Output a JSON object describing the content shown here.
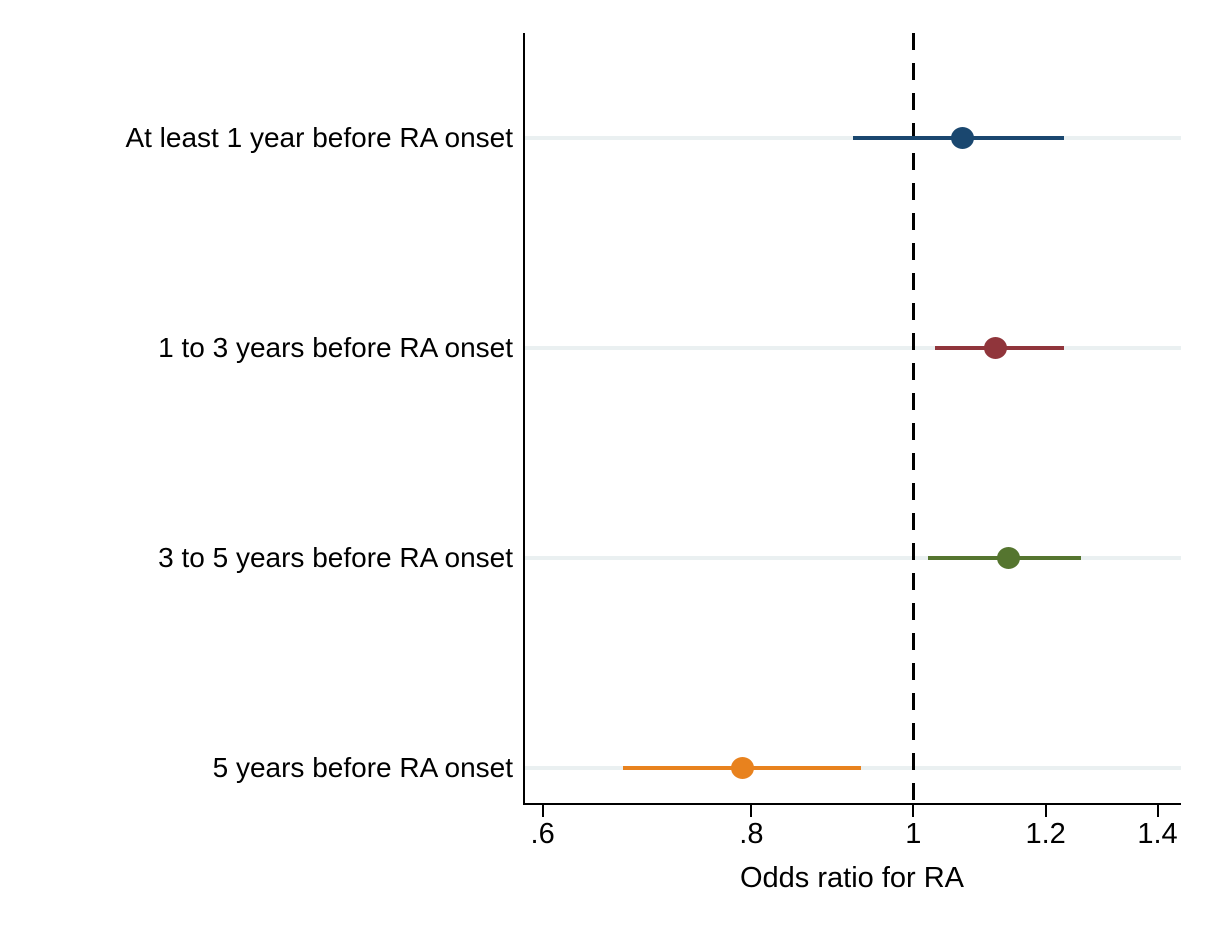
{
  "chart_data": {
    "type": "scatter",
    "subtype": "forest-plot",
    "title": "",
    "xlabel": "Odds ratio for RA",
    "ylabel": "",
    "x_scale": "log",
    "xlim": [
      0.584,
      1.446
    ],
    "x_ticks": [
      0.6,
      0.8,
      1,
      1.2,
      1.4
    ],
    "x_tick_labels": [
      ".6",
      ".8",
      "1",
      "1.2",
      "1.4"
    ],
    "reference_line_x": 1,
    "grid": true,
    "legend": "none",
    "categories": [
      "At least 1 year before RA onset",
      "1 to 3 years before RA onset",
      "3 to 5 years before RA onset",
      "5 years before RA onset"
    ],
    "points": [
      {
        "label": "At least 1 year before RA onset",
        "estimate": 1.07,
        "ci_low": 0.92,
        "ci_high": 1.23,
        "color": "#1a476f"
      },
      {
        "label": "1 to 3 years before RA onset",
        "estimate": 1.12,
        "ci_low": 1.03,
        "ci_high": 1.23,
        "color": "#90353b"
      },
      {
        "label": "3 to 5 years before RA onset",
        "estimate": 1.14,
        "ci_low": 1.02,
        "ci_high": 1.26,
        "color": "#55752f"
      },
      {
        "label": "5 years before RA onset",
        "estimate": 0.79,
        "ci_low": 0.67,
        "ci_high": 0.93,
        "color": "#e8821e"
      }
    ],
    "style": {
      "background": "#ffffff",
      "axis_color": "#000000",
      "grid_color": "#eaf0f1",
      "reference_line_color": "#000000",
      "text_color": "#000000"
    }
  }
}
